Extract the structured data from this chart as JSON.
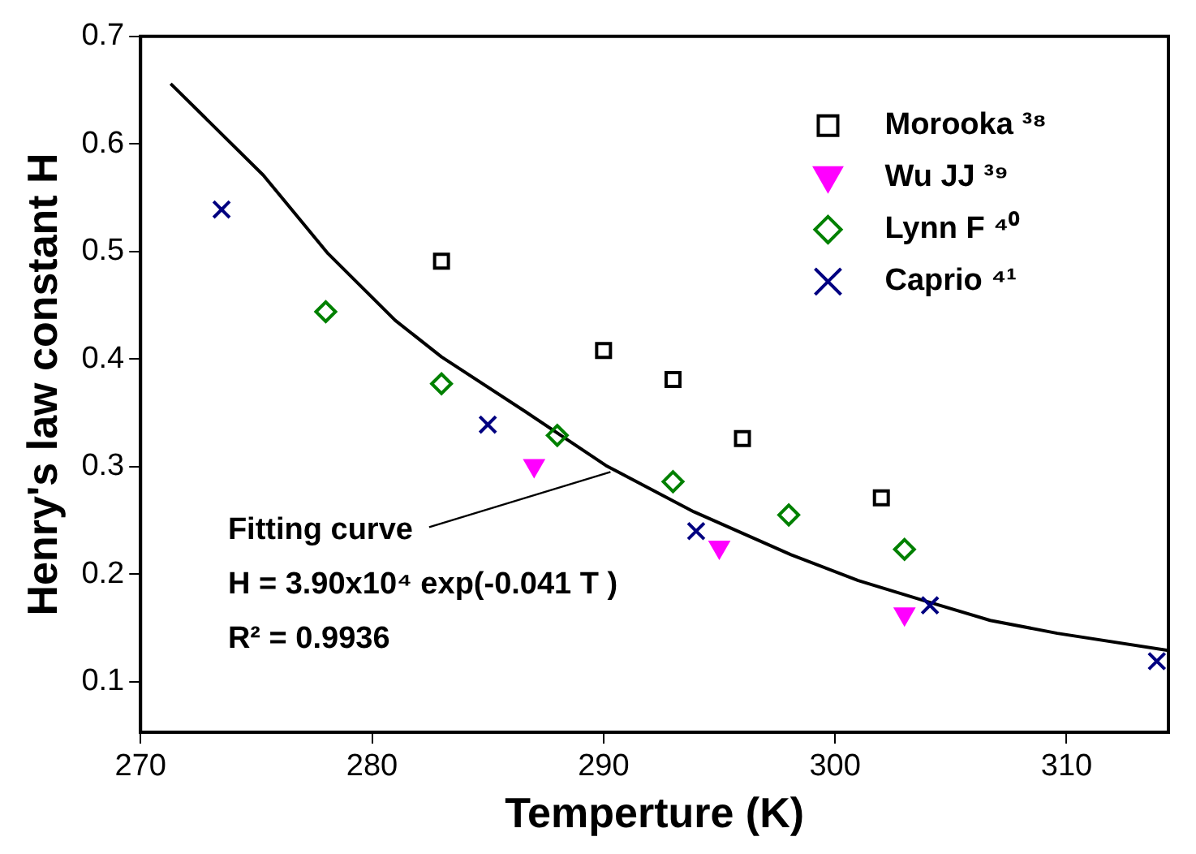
{
  "chart_data": {
    "type": "scatter",
    "xlabel": "Temperture (K)",
    "ylabel": "Henry's law constant H",
    "xlim": [
      270,
      314.4
    ],
    "xticks": [
      270,
      280,
      290,
      300,
      310
    ],
    "ylim": [
      0.053,
      0.7
    ],
    "yticks": [
      0.1,
      0.2,
      0.3,
      0.4,
      0.5,
      0.6,
      0.7
    ],
    "grid": false,
    "legend": "top right",
    "annotations": [
      {
        "text": "Fitting curve",
        "x": 290.3,
        "y": 0.295
      },
      "H = 3.90x10⁴ exp(-0.041 T )",
      "R² = 0.9936"
    ],
    "series": [
      {
        "name": "Morooka ³⁸",
        "color": "#000000",
        "marker": "square",
        "x": [
          283,
          290,
          293,
          296,
          302
        ],
        "values": [
          0.491,
          0.408,
          0.381,
          0.326,
          0.271
        ]
      },
      {
        "name": "Wu JJ ³⁹",
        "color": "#ff00ff",
        "marker": "triangle",
        "x": [
          287,
          295,
          303
        ],
        "values": [
          0.301,
          0.225,
          0.163
        ]
      },
      {
        "name": "Lynn F ⁴⁰",
        "color": "#008000",
        "marker": "diamond",
        "x": [
          278,
          283,
          288,
          293,
          298,
          303
        ],
        "values": [
          0.444,
          0.377,
          0.329,
          0.286,
          0.255,
          0.223
        ]
      },
      {
        "name": "Caprio ⁴¹",
        "color": "#000080",
        "marker": "cross",
        "x": [
          273.5,
          285,
          294,
          304.1,
          313.9
        ],
        "values": [
          0.539,
          0.339,
          0.24,
          0.171,
          0.119
        ]
      },
      {
        "type": "line",
        "color": "#000000",
        "marker": "none",
        "line_style": "solid",
        "x": [
          271.3,
          275.3,
          278.1,
          281,
          283,
          286.7,
          290.1,
          293.9,
          298.1,
          301,
          303.9,
          306.7,
          309.6,
          314.4
        ],
        "values": [
          0.656,
          0.571,
          0.498,
          0.436,
          0.402,
          0.35,
          0.301,
          0.258,
          0.218,
          0.194,
          0.175,
          0.157,
          0.145,
          0.129
        ]
      }
    ]
  }
}
